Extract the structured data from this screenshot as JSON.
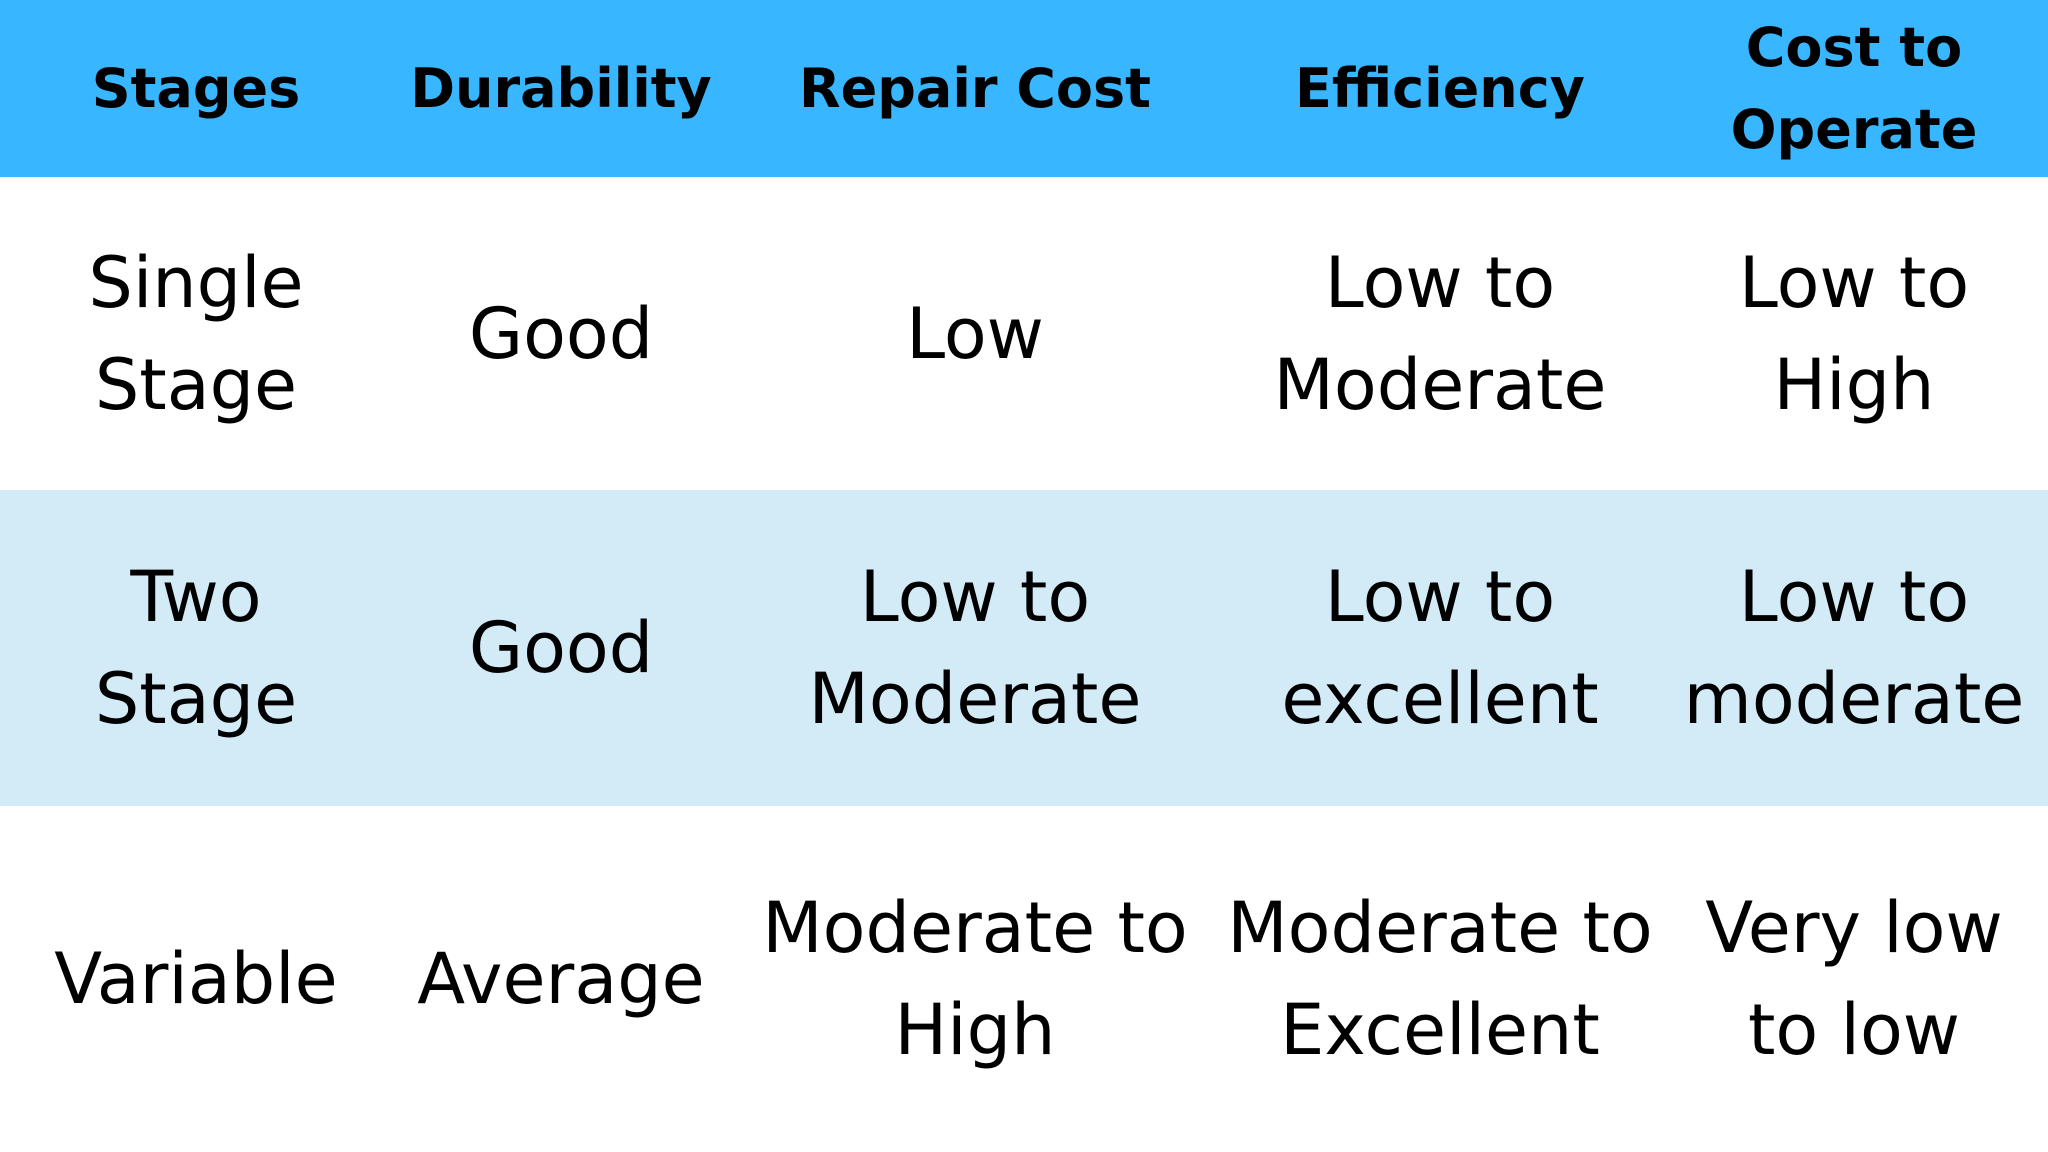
{
  "colors": {
    "header_bg": "#38b6ff",
    "alt_row_bg": "#d3eaf7",
    "row_bg": "#ffffff"
  },
  "table": {
    "headers": [
      "Stages",
      "Durability",
      "Repair Cost",
      "Efficiency",
      "Cost to\nOperate"
    ],
    "rows": [
      [
        "Single\nStage",
        "Good",
        "Low",
        "Low to\nModerate",
        "Low to\nHigh"
      ],
      [
        "Two\nStage",
        "Good",
        "Low to\nModerate",
        "Low to\nexcellent",
        "Low to\nmoderate"
      ],
      [
        "Variable",
        "Average",
        "Moderate to\nHigh",
        "Moderate to\nExcellent",
        "Very low\nto low"
      ]
    ]
  }
}
